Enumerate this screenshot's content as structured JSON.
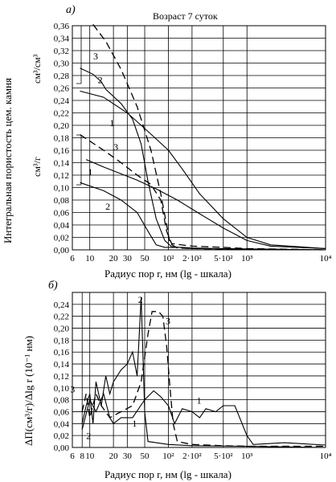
{
  "chart_data": [
    {
      "id": "a",
      "panel_label": "а)",
      "type": "line",
      "title": "Возраст 7 суток",
      "xscale": "log",
      "xlim": [
        6,
        10000
      ],
      "ylim": [
        0,
        0.36
      ],
      "x_ticks": [
        {
          "value": 6,
          "label": "6"
        },
        {
          "value": 10,
          "label": "10"
        },
        {
          "value": 20,
          "label": "20"
        },
        {
          "value": 30,
          "label": "30"
        },
        {
          "value": 50,
          "label": "50"
        },
        {
          "value": 100,
          "label": "10²"
        },
        {
          "value": 200,
          "label": "2·10²"
        },
        {
          "value": 500,
          "label": "5·10²"
        },
        {
          "value": 1000,
          "label": "10³"
        },
        {
          "value": 10000,
          "label": "10⁴"
        }
      ],
      "y_ticks": [
        "0,00",
        "0,02",
        "0,04",
        "0,06",
        "0,08",
        "0,10",
        "0,12",
        "0,14",
        "0,16",
        "0,18",
        "0,20",
        "0,22",
        "0,24",
        "0,26",
        "0,28",
        "0,30",
        "0,32",
        "0,34",
        "0,36"
      ],
      "xlabel": "Радиус пор r, нм (lg - шкала)",
      "ylabel": "Интегральная пористость цем. камня",
      "unit_labels": [
        "см³/см³",
        "см³/г"
      ],
      "grid": true,
      "series": [
        {
          "label": "3",
          "style": "dashed",
          "group": "volume",
          "points": [
            [
              11,
              0.362
            ],
            [
              16,
              0.335
            ],
            [
              25,
              0.29
            ],
            [
              40,
              0.23
            ],
            [
              60,
              0.16
            ],
            [
              80,
              0.09
            ],
            [
              95,
              0.04
            ],
            [
              105,
              0.01
            ],
            [
              130,
              0.003
            ],
            [
              200,
              0.002
            ],
            [
              1000,
              0.001
            ],
            [
              10000,
              0.0
            ]
          ]
        },
        {
          "label": "2",
          "style": "solid",
          "group": "volume",
          "points": [
            [
              7.5,
              0.292
            ],
            [
              11,
              0.282
            ],
            [
              14,
              0.27
            ],
            [
              16,
              0.258
            ],
            [
              25,
              0.235
            ],
            [
              35,
              0.21
            ],
            [
              45,
              0.17
            ],
            [
              55,
              0.11
            ],
            [
              70,
              0.05
            ],
            [
              90,
              0.015
            ],
            [
              110,
              0.005
            ],
            [
              200,
              0.002
            ],
            [
              10000,
              0.0
            ]
          ]
        },
        {
          "label": "1",
          "style": "solid",
          "group": "volume",
          "points": [
            [
              7.5,
              0.255
            ],
            [
              15,
              0.245
            ],
            [
              30,
              0.22
            ],
            [
              50,
              0.195
            ],
            [
              100,
              0.16
            ],
            [
              150,
              0.13
            ],
            [
              250,
              0.09
            ],
            [
              500,
              0.05
            ],
            [
              1000,
              0.02
            ],
            [
              2000,
              0.008
            ],
            [
              10000,
              0.002
            ]
          ]
        },
        {
          "label": "3",
          "style": "dashed",
          "group": "mass",
          "points": [
            [
              7.5,
              0.185
            ],
            [
              15,
              0.16
            ],
            [
              25,
              0.14
            ],
            [
              40,
              0.12
            ],
            [
              60,
              0.105
            ],
            [
              80,
              0.08
            ],
            [
              95,
              0.03
            ],
            [
              110,
              0.01
            ],
            [
              200,
              0.006
            ],
            [
              500,
              0.004
            ],
            [
              1000,
              0.002
            ],
            [
              10000,
              0.0
            ]
          ]
        },
        {
          "label": "1",
          "style": "solid",
          "group": "mass",
          "points": [
            [
              9,
              0.145
            ],
            [
              15,
              0.133
            ],
            [
              25,
              0.122
            ],
            [
              40,
              0.112
            ],
            [
              70,
              0.098
            ],
            [
              130,
              0.08
            ],
            [
              250,
              0.058
            ],
            [
              500,
              0.035
            ],
            [
              1000,
              0.015
            ],
            [
              2000,
              0.006
            ],
            [
              10000,
              0.002
            ]
          ]
        },
        {
          "label": "2",
          "style": "solid",
          "group": "mass",
          "points": [
            [
              7.5,
              0.108
            ],
            [
              15,
              0.095
            ],
            [
              25,
              0.08
            ],
            [
              40,
              0.06
            ],
            [
              55,
              0.03
            ],
            [
              70,
              0.008
            ],
            [
              90,
              0.004
            ],
            [
              150,
              0.004
            ],
            [
              200,
              0.003
            ],
            [
              400,
              0.002
            ],
            [
              10000,
              0.0
            ]
          ]
        }
      ]
    },
    {
      "id": "b",
      "panel_label": "б)",
      "type": "line",
      "xscale": "log",
      "xlim": [
        6,
        10000
      ],
      "ylim": [
        0,
        0.26
      ],
      "x_ticks": [
        {
          "value": 6,
          "label": "6"
        },
        {
          "value": 8,
          "label": "8"
        },
        {
          "value": 10,
          "label": "10"
        },
        {
          "value": 20,
          "label": "20"
        },
        {
          "value": 30,
          "label": "30"
        },
        {
          "value": 50,
          "label": "50"
        },
        {
          "value": 100,
          "label": "10²"
        },
        {
          "value": 200,
          "label": "2·10²"
        },
        {
          "value": 500,
          "label": "5·10²"
        },
        {
          "value": 1000,
          "label": "10³"
        },
        {
          "value": 10000,
          "label": "10⁴"
        }
      ],
      "y_ticks": [
        "0,00",
        "0,02",
        "0,04",
        "0,06",
        "0,08",
        "0,10",
        "0,12",
        "0,14",
        "0,16",
        "0,18",
        "0,20",
        "0,22",
        "0,24"
      ],
      "xlabel": "Радиус пор r, нм (lg - шкала)",
      "ylabel": "ΔП(см³/г)/Δlg r (10⁻¹ нм)",
      "grid": true,
      "series": [
        {
          "label": "3",
          "style": "dashed",
          "points": [
            [
              8,
              0.06
            ],
            [
              9,
              0.09
            ],
            [
              10,
              0.05
            ],
            [
              12,
              0.09
            ],
            [
              14,
              0.07
            ],
            [
              18,
              0.05
            ],
            [
              25,
              0.06
            ],
            [
              35,
              0.07
            ],
            [
              45,
              0.11
            ],
            [
              55,
              0.19
            ],
            [
              62,
              0.228
            ],
            [
              75,
              0.228
            ],
            [
              85,
              0.22
            ],
            [
              95,
              0.17
            ],
            [
              105,
              0.1
            ],
            [
              115,
              0.04
            ],
            [
              130,
              0.01
            ],
            [
              200,
              0.005
            ],
            [
              500,
              0.003
            ],
            [
              1000,
              0.002
            ],
            [
              10000,
              0.002
            ]
          ]
        },
        {
          "label": "2",
          "style": "solid",
          "points": [
            [
              8,
              0.04
            ],
            [
              9,
              0.07
            ],
            [
              10,
              0.09
            ],
            [
              11,
              0.04
            ],
            [
              12,
              0.11
            ],
            [
              14,
              0.07
            ],
            [
              16,
              0.12
            ],
            [
              18,
              0.09
            ],
            [
              20,
              0.11
            ],
            [
              25,
              0.13
            ],
            [
              30,
              0.14
            ],
            [
              35,
              0.16
            ],
            [
              40,
              0.12
            ],
            [
              45,
              0.252
            ],
            [
              50,
              0.06
            ],
            [
              55,
              0.01
            ],
            [
              70,
              0.008
            ],
            [
              100,
              0.005
            ],
            [
              200,
              0.003
            ],
            [
              1000,
              0.002
            ],
            [
              10000,
              0.0
            ]
          ]
        },
        {
          "label": "1",
          "style": "solid",
          "points": [
            [
              8,
              0.03
            ],
            [
              10,
              0.08
            ],
            [
              12,
              0.06
            ],
            [
              15,
              0.09
            ],
            [
              18,
              0.05
            ],
            [
              20,
              0.04
            ],
            [
              25,
              0.05
            ],
            [
              35,
              0.05
            ],
            [
              50,
              0.08
            ],
            [
              65,
              0.095
            ],
            [
              80,
              0.085
            ],
            [
              100,
              0.07
            ],
            [
              120,
              0.04
            ],
            [
              150,
              0.065
            ],
            [
              200,
              0.06
            ],
            [
              250,
              0.05
            ],
            [
              300,
              0.065
            ],
            [
              400,
              0.06
            ],
            [
              500,
              0.07
            ],
            [
              700,
              0.07
            ],
            [
              1000,
              0.02
            ],
            [
              1200,
              0.005
            ],
            [
              3000,
              0.008
            ],
            [
              10000,
              0.004
            ]
          ]
        }
      ]
    }
  ]
}
